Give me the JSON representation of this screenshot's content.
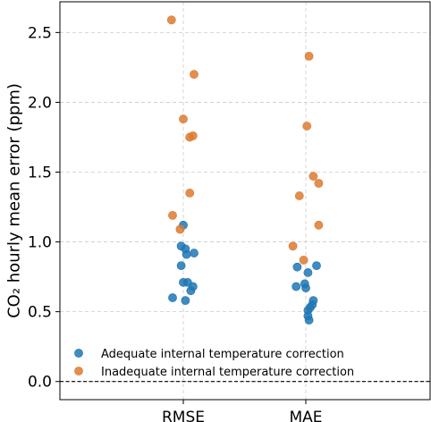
{
  "chart_data": {
    "type": "scatter",
    "categories": [
      "RMSE",
      "MAE"
    ],
    "ylabel": "CO₂ hourly mean error (ppm)",
    "xlabel": "",
    "ylim": [
      -0.13,
      2.72
    ],
    "yticks": [
      0.0,
      0.5,
      1.0,
      1.5,
      2.0,
      2.5
    ],
    "ytick_labels": [
      "0.0",
      "0.5",
      "1.0",
      "1.5",
      "2.0",
      "2.5"
    ],
    "grid": true,
    "reference_line": 0.0,
    "legend_position": "lower-left",
    "series": [
      {
        "name": "Adequate internal temperature correction",
        "color": "#1f77b4",
        "points": {
          "RMSE": [
            {
              "offset": -0.1,
              "value": 0.6
            },
            {
              "offset": 0.0,
              "value": 1.12
            },
            {
              "offset": -0.02,
              "value": 0.97
            },
            {
              "offset": 0.02,
              "value": 0.95
            },
            {
              "offset": 0.03,
              "value": 0.91
            },
            {
              "offset": 0.1,
              "value": 0.92
            },
            {
              "offset": -0.02,
              "value": 0.83
            },
            {
              "offset": 0.0,
              "value": 0.71
            },
            {
              "offset": 0.04,
              "value": 0.71
            },
            {
              "offset": 0.09,
              "value": 0.68
            },
            {
              "offset": 0.07,
              "value": 0.65
            },
            {
              "offset": 0.02,
              "value": 0.58
            }
          ],
          "MAE": [
            {
              "offset": -0.08,
              "value": 0.82
            },
            {
              "offset": 0.02,
              "value": 0.78
            },
            {
              "offset": -0.09,
              "value": 0.68
            },
            {
              "offset": -0.01,
              "value": 0.7
            },
            {
              "offset": 0.0,
              "value": 0.67
            },
            {
              "offset": 0.1,
              "value": 0.83
            },
            {
              "offset": 0.07,
              "value": 0.58
            },
            {
              "offset": 0.06,
              "value": 0.55
            },
            {
              "offset": 0.04,
              "value": 0.53
            },
            {
              "offset": 0.02,
              "value": 0.51
            },
            {
              "offset": 0.02,
              "value": 0.47
            },
            {
              "offset": 0.03,
              "value": 0.44
            }
          ]
        }
      },
      {
        "name": "Inadequate internal temperature correction",
        "color": "#dd7a30",
        "points": {
          "RMSE": [
            {
              "offset": -0.11,
              "value": 2.59
            },
            {
              "offset": 0.1,
              "value": 2.2
            },
            {
              "offset": 0.0,
              "value": 1.88
            },
            {
              "offset": 0.06,
              "value": 1.75
            },
            {
              "offset": 0.09,
              "value": 1.76
            },
            {
              "offset": 0.06,
              "value": 1.35
            },
            {
              "offset": -0.1,
              "value": 1.19
            },
            {
              "offset": -0.03,
              "value": 1.09
            }
          ],
          "MAE": [
            {
              "offset": 0.03,
              "value": 2.33
            },
            {
              "offset": 0.01,
              "value": 1.83
            },
            {
              "offset": 0.07,
              "value": 1.47
            },
            {
              "offset": 0.12,
              "value": 1.42
            },
            {
              "offset": -0.06,
              "value": 1.33
            },
            {
              "offset": 0.12,
              "value": 1.12
            },
            {
              "offset": -0.12,
              "value": 0.97
            },
            {
              "offset": -0.02,
              "value": 0.87
            }
          ]
        }
      }
    ]
  }
}
